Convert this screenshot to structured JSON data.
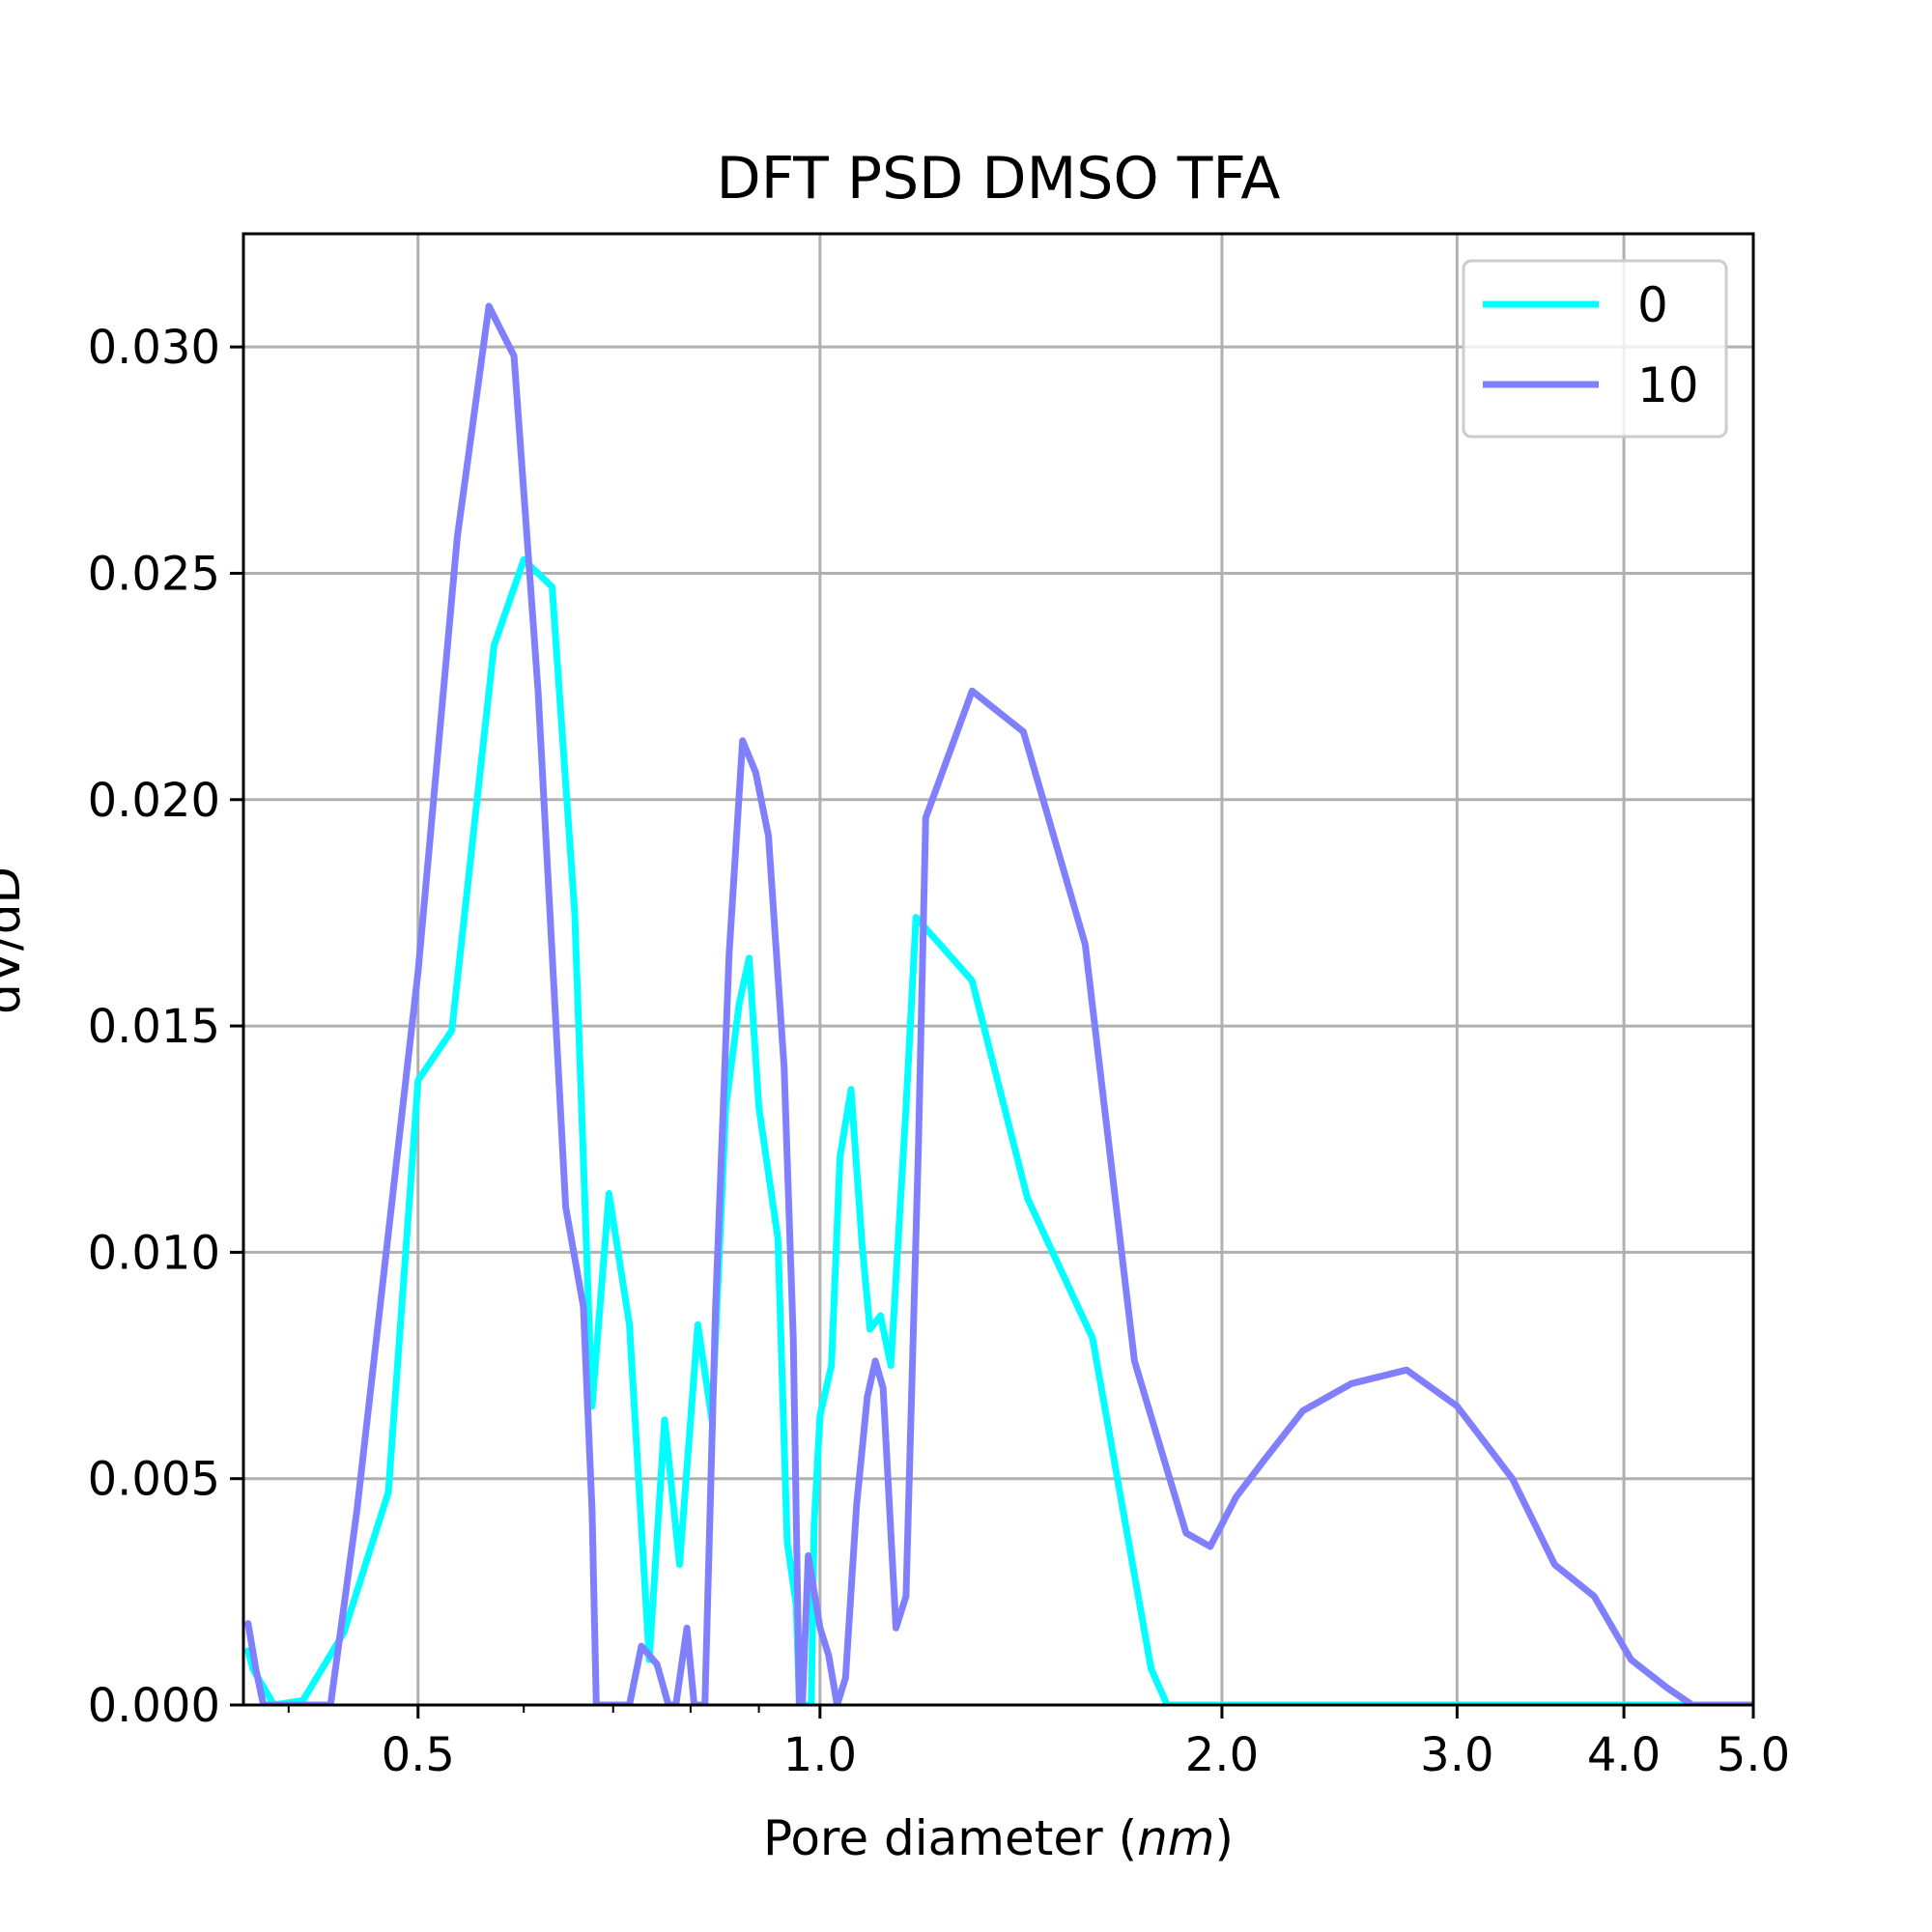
{
  "chart_data": {
    "type": "line",
    "title": "DFT PSD DMSO TFA",
    "xlabel_prefix": "Pore diameter (",
    "xlabel_unit": "nm",
    "xlabel_suffix": ")",
    "ylabel": "dV/dD",
    "x_scale": "log",
    "xlim": [
      0.37,
      5.0
    ],
    "ylim": [
      0,
      0.0325
    ],
    "x_ticks": [
      0.5,
      1.0,
      2.0,
      3.0,
      4.0,
      5.0
    ],
    "x_tick_labels": [
      "0.5",
      "1.0",
      "2.0",
      "3.0",
      "4.0",
      "5.0"
    ],
    "x_minor_ticks": [
      0.4,
      0.6,
      0.7,
      0.8,
      0.9
    ],
    "y_ticks": [
      0,
      0.005,
      0.01,
      0.015,
      0.02,
      0.025,
      0.03
    ],
    "y_tick_labels": [
      "0.000",
      "0.005",
      "0.010",
      "0.015",
      "0.020",
      "0.025",
      "0.030"
    ],
    "grid": true,
    "legend_position": "top-right",
    "series": [
      {
        "name": "0",
        "color": "#00ffff",
        "points": [
          [
            0.373,
            0.0012
          ],
          [
            0.376,
            0.0008
          ],
          [
            0.39,
            0.0
          ],
          [
            0.41,
            0.0001
          ],
          [
            0.44,
            0.0016
          ],
          [
            0.475,
            0.0047
          ],
          [
            0.5,
            0.0138
          ],
          [
            0.53,
            0.0149
          ],
          [
            0.57,
            0.0234
          ],
          [
            0.6,
            0.0253
          ],
          [
            0.63,
            0.0247
          ],
          [
            0.655,
            0.0175
          ],
          [
            0.675,
            0.0066
          ],
          [
            0.695,
            0.0113
          ],
          [
            0.72,
            0.0084
          ],
          [
            0.745,
            0.001
          ],
          [
            0.765,
            0.0063
          ],
          [
            0.785,
            0.0031
          ],
          [
            0.81,
            0.0084
          ],
          [
            0.83,
            0.0063
          ],
          [
            0.85,
            0.0132
          ],
          [
            0.87,
            0.0155
          ],
          [
            0.885,
            0.0165
          ],
          [
            0.9,
            0.0132
          ],
          [
            0.93,
            0.0103
          ],
          [
            0.945,
            0.0036
          ],
          [
            0.96,
            0.0022
          ],
          [
            0.965,
            0.0
          ],
          [
            0.985,
            0.0
          ],
          [
            0.99,
            0.004
          ],
          [
            1.0,
            0.0064
          ],
          [
            1.02,
            0.0075
          ],
          [
            1.035,
            0.0121
          ],
          [
            1.055,
            0.0136
          ],
          [
            1.075,
            0.0102
          ],
          [
            1.09,
            0.0083
          ],
          [
            1.11,
            0.0086
          ],
          [
            1.13,
            0.0075
          ],
          [
            1.16,
            0.0132
          ],
          [
            1.18,
            0.0174
          ],
          [
            1.3,
            0.016
          ],
          [
            1.43,
            0.0112
          ],
          [
            1.6,
            0.0081
          ],
          [
            1.77,
            0.0008
          ],
          [
            1.82,
            0.0
          ],
          [
            1.9,
            0.0
          ],
          [
            5.0,
            0.0
          ]
        ]
      },
      {
        "name": "10",
        "color": "#8080ff",
        "points": [
          [
            0.373,
            0.0018
          ],
          [
            0.378,
            0.0008
          ],
          [
            0.383,
            0.0
          ],
          [
            0.43,
            0.0
          ],
          [
            0.45,
            0.0043
          ],
          [
            0.5,
            0.0162
          ],
          [
            0.535,
            0.0258
          ],
          [
            0.565,
            0.0309
          ],
          [
            0.59,
            0.0298
          ],
          [
            0.615,
            0.0224
          ],
          [
            0.645,
            0.011
          ],
          [
            0.665,
            0.0088
          ],
          [
            0.675,
            0.0043
          ],
          [
            0.68,
            0.0
          ],
          [
            0.72,
            0.0
          ],
          [
            0.735,
            0.0013
          ],
          [
            0.755,
            0.0009
          ],
          [
            0.77,
            0.0
          ],
          [
            0.78,
            0.0
          ],
          [
            0.795,
            0.0017
          ],
          [
            0.805,
            0.0
          ],
          [
            0.82,
            0.0
          ],
          [
            0.835,
            0.0087
          ],
          [
            0.855,
            0.0166
          ],
          [
            0.875,
            0.0213
          ],
          [
            0.895,
            0.0206
          ],
          [
            0.915,
            0.0192
          ],
          [
            0.94,
            0.0141
          ],
          [
            0.955,
            0.0081
          ],
          [
            0.965,
            0.0
          ],
          [
            0.97,
            0.0
          ],
          [
            0.98,
            0.0033
          ],
          [
            1.0,
            0.0017
          ],
          [
            1.015,
            0.0011
          ],
          [
            1.03,
            0.0
          ],
          [
            1.045,
            0.0006
          ],
          [
            1.065,
            0.0044
          ],
          [
            1.085,
            0.0068
          ],
          [
            1.1,
            0.0076
          ],
          [
            1.115,
            0.007
          ],
          [
            1.14,
            0.0017
          ],
          [
            1.16,
            0.0024
          ],
          [
            1.185,
            0.0123
          ],
          [
            1.2,
            0.0196
          ],
          [
            1.3,
            0.0224
          ],
          [
            1.42,
            0.0215
          ],
          [
            1.58,
            0.0168
          ],
          [
            1.72,
            0.0076
          ],
          [
            1.88,
            0.0038
          ],
          [
            1.96,
            0.0035
          ],
          [
            2.05,
            0.0046
          ],
          [
            2.15,
            0.0054
          ],
          [
            2.3,
            0.0065
          ],
          [
            2.5,
            0.0071
          ],
          [
            2.75,
            0.0074
          ],
          [
            3.0,
            0.0066
          ],
          [
            3.3,
            0.005
          ],
          [
            3.55,
            0.0031
          ],
          [
            3.8,
            0.0024
          ],
          [
            4.05,
            0.001
          ],
          [
            4.3,
            0.0004
          ],
          [
            4.5,
            0.0
          ],
          [
            5.0,
            0.0
          ]
        ]
      }
    ]
  }
}
